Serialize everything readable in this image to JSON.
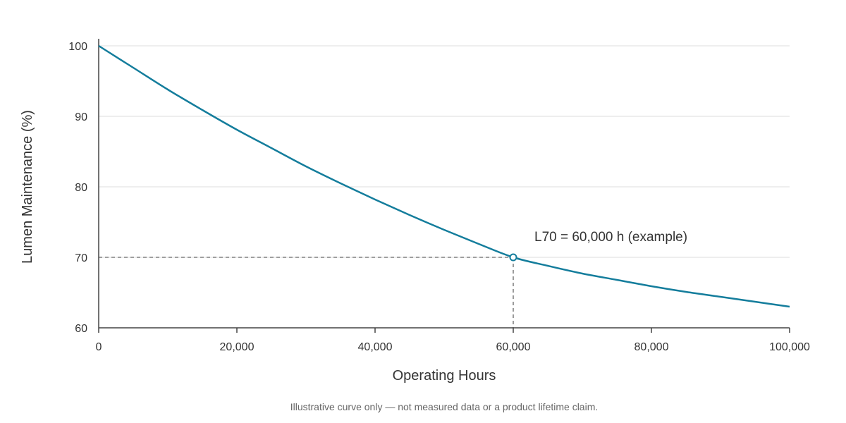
{
  "chart_data": {
    "type": "line",
    "xlabel": "Operating Hours",
    "ylabel": "Lumen Maintenance (%)",
    "xlim": [
      0,
      100000
    ],
    "ylim": [
      60,
      100
    ],
    "x_ticks": [
      0,
      20000,
      40000,
      60000,
      80000,
      100000
    ],
    "x_tick_labels": [
      "0",
      "20,000",
      "40,000",
      "60,000",
      "80,000",
      "100,000"
    ],
    "y_ticks": [
      60,
      70,
      80,
      90,
      100
    ],
    "y_tick_labels": [
      "60",
      "70",
      "80",
      "90",
      "100"
    ],
    "grid": true,
    "series": [
      {
        "x": [
          0,
          5000,
          10000,
          15000,
          20000,
          25000,
          30000,
          35000,
          40000,
          45000,
          50000,
          55000,
          60000,
          65000,
          70000,
          75000,
          80000,
          85000,
          90000,
          95000,
          100000
        ],
        "values": [
          100,
          96.9,
          93.8,
          90.9,
          88.1,
          85.5,
          82.9,
          80.5,
          78.2,
          76.0,
          73.9,
          71.9,
          70.0,
          68.8,
          67.7,
          66.8,
          65.9,
          65.1,
          64.4,
          63.7,
          63.0
        ]
      }
    ],
    "annotation": {
      "text": "L70 = 60,000 h (example)",
      "x": 60000,
      "y": 70
    },
    "footnote": "Illustrative curve only — not measured data or a product lifetime claim."
  },
  "colors": {
    "curve": "#147d9c",
    "marker_fill": "#ffffff",
    "reference_line": "#666666"
  }
}
